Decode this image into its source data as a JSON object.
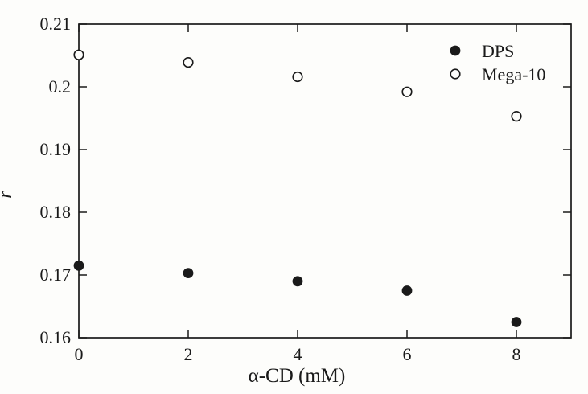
{
  "chart_data": {
    "type": "scatter",
    "title": "",
    "xlabel": "α-CD (mM)",
    "ylabel": "r",
    "xlim": [
      0,
      9
    ],
    "ylim": [
      0.16,
      0.21
    ],
    "xticks": [
      0,
      2,
      4,
      6,
      8
    ],
    "xtick_labels": [
      "0",
      "2",
      "4",
      "6",
      "8"
    ],
    "yticks": [
      0.16,
      0.17,
      0.18,
      0.19,
      0.2,
      0.21
    ],
    "ytick_labels": [
      "0.16",
      "0.17",
      "0.18",
      "0.19",
      "0.2",
      "0.21"
    ],
    "grid": false,
    "frame": "full-box-with-mirrored-inward-ticks",
    "legend": {
      "position": "top-right-inside",
      "entries": [
        {
          "label": "DPS",
          "marker": "filled-circle"
        },
        {
          "label": "Mega-10",
          "marker": "open-circle"
        }
      ]
    },
    "series": [
      {
        "name": "DPS",
        "marker": "filled-circle",
        "x": [
          0,
          2,
          4,
          6,
          8
        ],
        "y": [
          0.1715,
          0.1703,
          0.169,
          0.1675,
          0.1625
        ]
      },
      {
        "name": "Mega-10",
        "marker": "open-circle",
        "x": [
          0,
          2,
          4,
          6,
          8
        ],
        "y": [
          0.2051,
          0.2039,
          0.2016,
          0.1992,
          0.1953
        ]
      }
    ],
    "colors": {
      "foreground": "#1a1a1a",
      "background": "#fdfdfb",
      "open_marker_fill": "#fdfdfb"
    }
  }
}
